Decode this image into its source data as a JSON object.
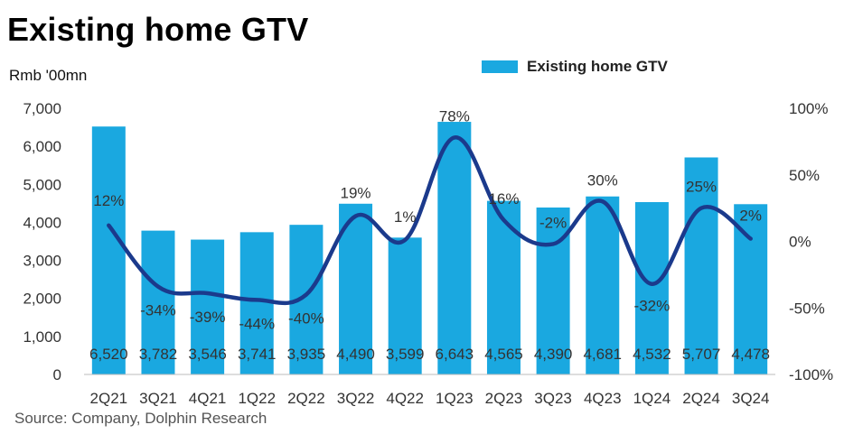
{
  "title": "Existing home GTV",
  "unit_label": "Rmb '00mn",
  "source": "Source: Company, Dolphin Research",
  "colors": {
    "bar": "#1aa8e0",
    "line": "#1b3a8c",
    "text": "#222222"
  },
  "chart_data": {
    "type": "bar",
    "categories": [
      "2Q21",
      "3Q21",
      "4Q21",
      "1Q22",
      "2Q22",
      "3Q22",
      "4Q22",
      "1Q23",
      "2Q23",
      "3Q23",
      "4Q23",
      "1Q24",
      "2Q24",
      "3Q24"
    ],
    "series": [
      {
        "name": "Existing home GTV",
        "type": "bar",
        "axis": "left",
        "values": [
          6520,
          3782,
          3546,
          3741,
          3935,
          4490,
          3599,
          6643,
          4565,
          4390,
          4681,
          4532,
          5707,
          4478
        ],
        "labels": [
          "6,520",
          "3,782",
          "3,546",
          "3,741",
          "3,935",
          "4,490",
          "3,599",
          "6,643",
          "4,565",
          "4,390",
          "4,681",
          "4,532",
          "5,707",
          "4,478"
        ]
      },
      {
        "name": "",
        "type": "line",
        "axis": "right",
        "values": [
          12,
          -34,
          -39,
          -44,
          -40,
          19,
          1,
          78,
          16,
          -2,
          30,
          -32,
          25,
          2
        ],
        "labels": [
          "12%",
          "-34%",
          "-39%",
          "-44%",
          "-40%",
          "19%",
          "1%",
          "78%",
          "16%",
          "-2%",
          "30%",
          "-32%",
          "25%",
          "2%"
        ]
      }
    ],
    "yleft": {
      "lim": [
        0,
        7000
      ],
      "ticks": [
        "0",
        "1,000",
        "2,000",
        "3,000",
        "4,000",
        "5,000",
        "6,000",
        "7,000"
      ]
    },
    "yright": {
      "lim": [
        -100,
        100
      ],
      "ticks": [
        "-100%",
        "-50%",
        "0%",
        "50%",
        "100%"
      ]
    },
    "legend_position": "top-right",
    "grid": false
  }
}
